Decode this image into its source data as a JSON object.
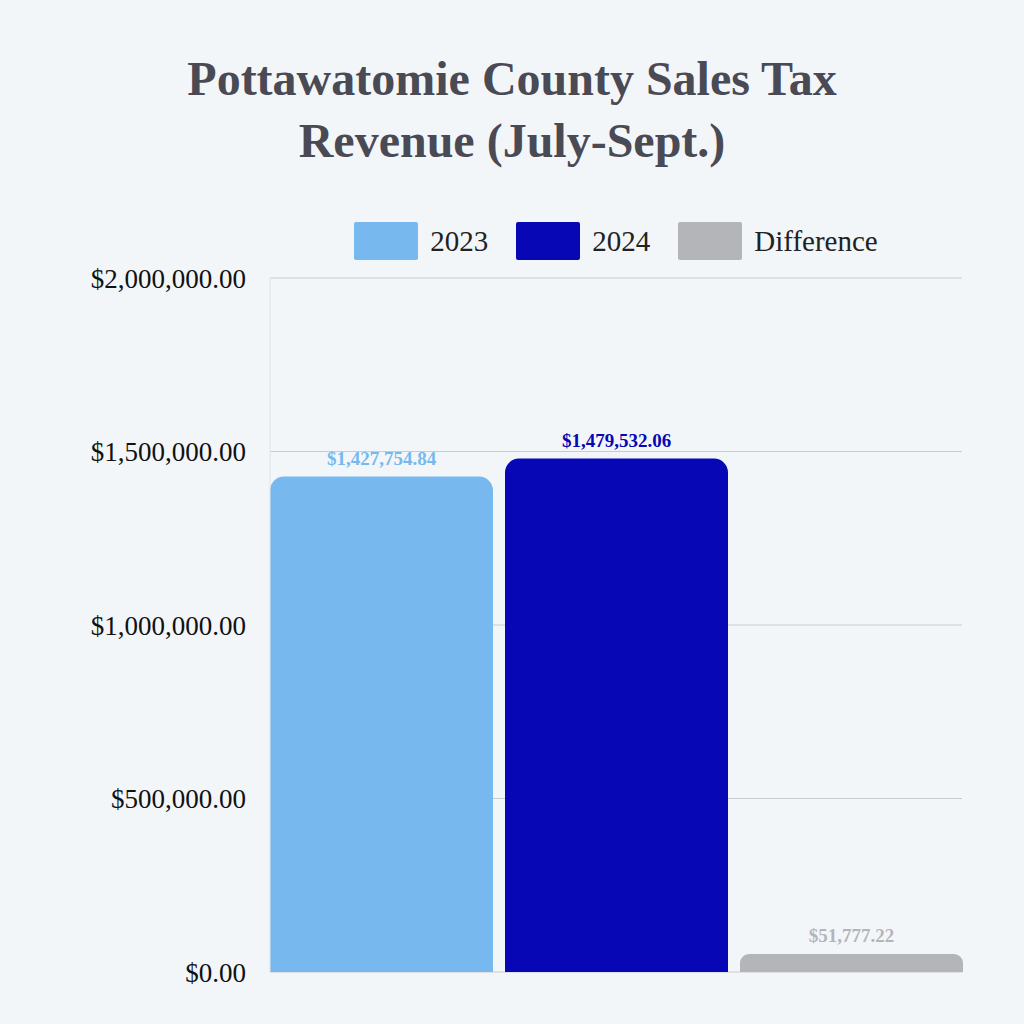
{
  "chart_data": {
    "type": "bar",
    "title": "Pottawatomie County Sales Tax Revenue (July-Sept.)",
    "categories": [
      null
    ],
    "series": [
      {
        "name": "2023",
        "color": "#77b8ef",
        "values": [
          1427754.84
        ],
        "value_labels": [
          "$1,427,754.84"
        ]
      },
      {
        "name": "2024",
        "color": "#0707b5",
        "values": [
          1479532.06
        ],
        "value_labels": [
          "$1,479,532.06"
        ]
      },
      {
        "name": "Difference",
        "color": "#b3b5b9",
        "values": [
          51777.22
        ],
        "value_labels": [
          "$51,777.22"
        ]
      }
    ],
    "ylim": [
      0,
      2000000
    ],
    "yticks": [
      {
        "value": 0,
        "label": "$0.00"
      },
      {
        "value": 500000,
        "label": "$500,000.00"
      },
      {
        "value": 1000000,
        "label": "$1,000,000.00"
      },
      {
        "value": 1500000,
        "label": "$1,500,000.00"
      },
      {
        "value": 2000000,
        "label": "$2,000,000.00"
      }
    ],
    "grid": true,
    "legend": "top",
    "data_labels": true,
    "tick_labels": "y"
  }
}
